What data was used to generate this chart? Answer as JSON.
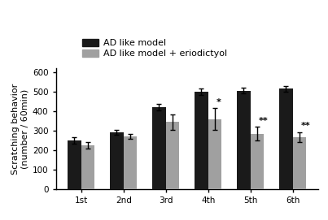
{
  "categories": [
    "1st",
    "2nd",
    "3rd",
    "4th",
    "5th",
    "6th"
  ],
  "black_values": [
    250,
    290,
    420,
    500,
    505,
    515
  ],
  "gray_values": [
    225,
    270,
    345,
    360,
    285,
    268
  ],
  "black_errors": [
    18,
    12,
    18,
    18,
    15,
    15
  ],
  "gray_errors": [
    15,
    12,
    40,
    55,
    35,
    25
  ],
  "black_color": "#1a1a1a",
  "gray_color": "#a0a0a0",
  "ylabel": "Scratching behavior\n(number / 60min)",
  "ylim": [
    0,
    620
  ],
  "yticks": [
    0,
    100,
    200,
    300,
    400,
    500,
    600
  ],
  "legend_labels": [
    "AD like model",
    "AD like model + eriodictyol"
  ],
  "sig_indices": [
    3,
    4,
    5
  ],
  "sig_markers": [
    "*",
    "**",
    "**"
  ],
  "bar_width": 0.32,
  "background_color": "#ffffff",
  "label_fontsize": 8,
  "tick_fontsize": 7.5,
  "legend_fontsize": 8
}
